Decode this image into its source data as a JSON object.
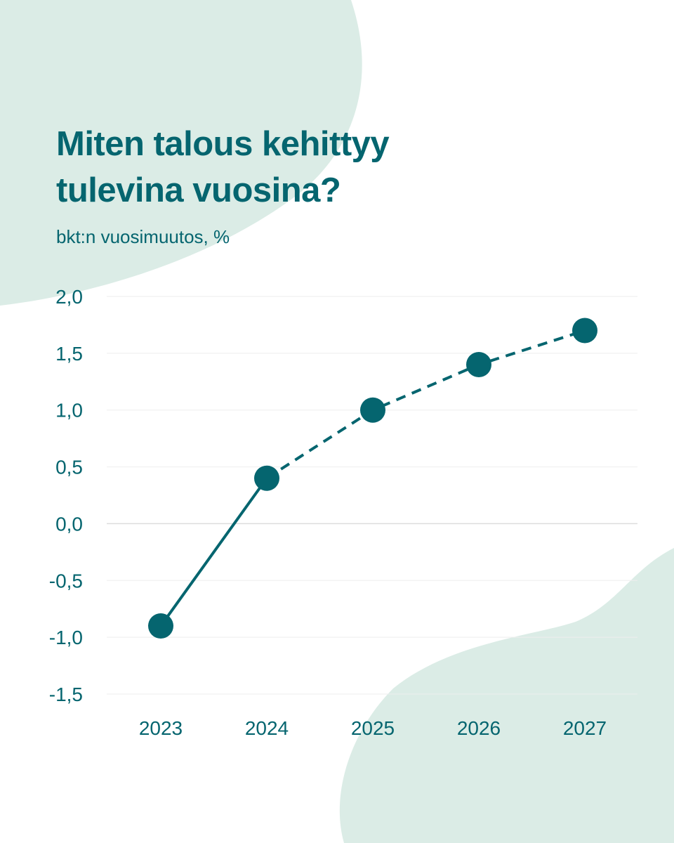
{
  "header": {
    "title_line1": "Miten talous kehittyy",
    "title_line2": "tulevina vuosina?",
    "subtitle": "bkt:n vuosimuutos, %"
  },
  "colors": {
    "accent": "#05656f",
    "blob": "#dbece6",
    "grid": "#eeeeee",
    "background": "#ffffff"
  },
  "chart_data": {
    "type": "line",
    "title": "Miten talous kehittyy tulevina vuosina?",
    "subtitle": "bkt:n vuosimuutos, %",
    "categories": [
      "2023",
      "2024",
      "2025",
      "2026",
      "2027"
    ],
    "series": [
      {
        "values": [
          -0.9,
          0.4,
          1.0,
          1.4,
          1.7
        ]
      }
    ],
    "line_style": "solid for 2023–2024, dashed for 2024–2027",
    "ylim": [
      -1.5,
      2.0
    ],
    "yticks": [
      2.0,
      1.5,
      1.0,
      0.5,
      0.0,
      -0.5,
      -1.0,
      -1.5
    ],
    "ytick_labels": [
      "2,0",
      "1,5",
      "1,0",
      "0,5",
      "0,0",
      "-0,5",
      "-1,0",
      "-1,5"
    ],
    "grid": true,
    "legend": false
  }
}
